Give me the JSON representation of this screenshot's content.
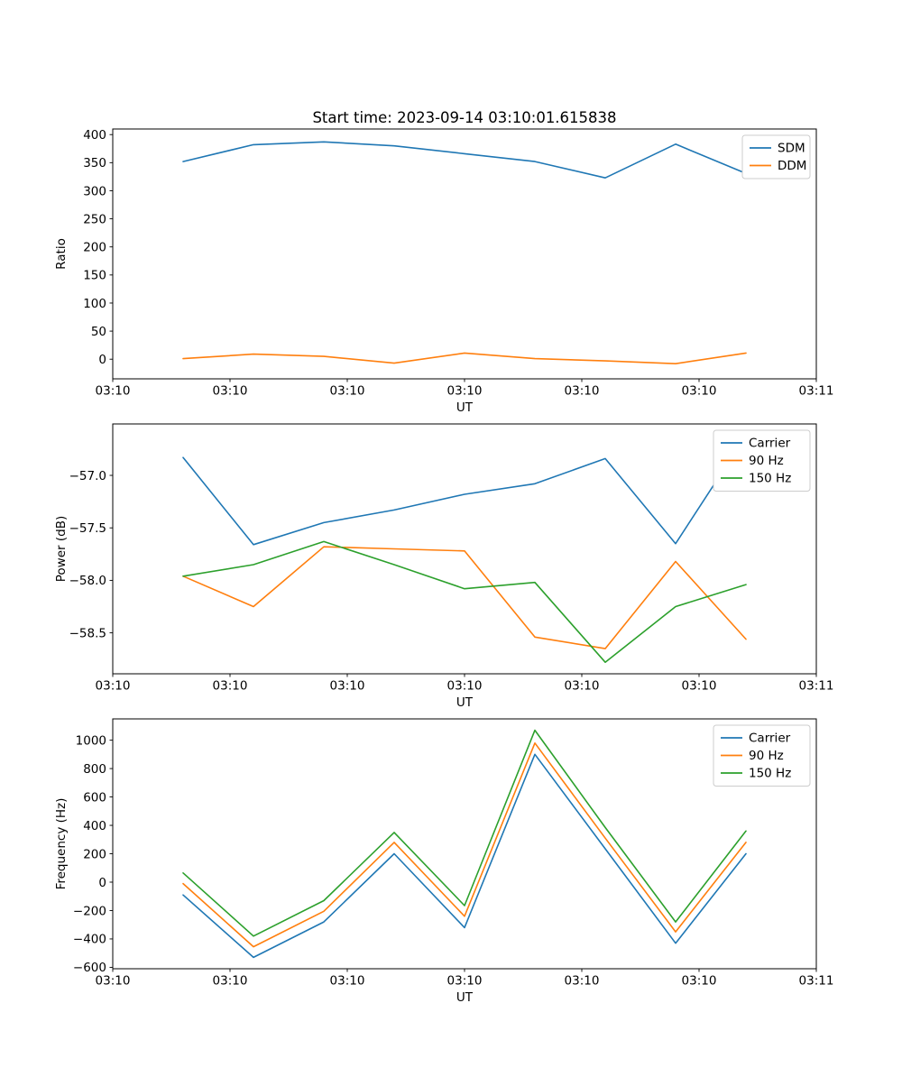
{
  "figure": {
    "background": "#ffffff"
  },
  "colors": {
    "blue": "#1f77b4",
    "orange": "#ff7f0e",
    "green": "#2ca02c",
    "legend_border": "#cccccc",
    "axes": "#000000"
  },
  "chart_data": [
    {
      "id": "ratio",
      "type": "line",
      "title": "Start time: 2023-09-14 03:10:01.615838",
      "xlabel": "UT",
      "ylabel": "Ratio",
      "x": [
        6,
        12,
        18,
        24,
        30,
        36,
        42,
        48,
        54
      ],
      "series": [
        {
          "name": "SDM",
          "color": "#1f77b4",
          "values": [
            352,
            382,
            387,
            380,
            366,
            352,
            323,
            383,
            331
          ]
        },
        {
          "name": "DDM",
          "color": "#ff7f0e",
          "values": [
            1,
            9,
            5,
            -7,
            11,
            1,
            -3,
            -8,
            11
          ]
        }
      ],
      "xlim": [
        0,
        60
      ],
      "ylim": [
        -35,
        410
      ],
      "yticks": [
        0,
        50,
        100,
        150,
        200,
        250,
        300,
        350,
        400
      ],
      "ytick_labels": [
        "0",
        "50",
        "100",
        "150",
        "200",
        "250",
        "300",
        "350",
        "400"
      ],
      "xticks": [
        0,
        10,
        20,
        30,
        40,
        50,
        60
      ],
      "xtick_labels": [
        "03:10",
        "03:10",
        "03:10",
        "03:10",
        "03:10",
        "03:10",
        "03:11"
      ],
      "legend_position": "top-right",
      "grid": false
    },
    {
      "id": "power",
      "type": "line",
      "title": "",
      "xlabel": "UT",
      "ylabel": "Power (dB)",
      "x": [
        6,
        12,
        18,
        24,
        30,
        36,
        42,
        48,
        54
      ],
      "series": [
        {
          "name": "Carrier",
          "color": "#1f77b4",
          "values": [
            -56.83,
            -57.66,
            -57.45,
            -57.33,
            -57.18,
            -57.08,
            -56.84,
            -57.65,
            -56.62
          ]
        },
        {
          "name": "90 Hz",
          "color": "#ff7f0e",
          "values": [
            -57.96,
            -58.25,
            -57.68,
            -57.7,
            -57.72,
            -58.54,
            -58.65,
            -57.82,
            -58.56
          ]
        },
        {
          "name": "150 Hz",
          "color": "#2ca02c",
          "values": [
            -57.96,
            -57.85,
            -57.63,
            -57.85,
            -58.08,
            -58.02,
            -58.78,
            -58.25,
            -58.04
          ]
        }
      ],
      "xlim": [
        0,
        60
      ],
      "ylim": [
        -58.89,
        -56.51
      ],
      "yticks": [
        -57.0,
        -57.5,
        -58.0,
        -58.5
      ],
      "ytick_labels": [
        "−57.0",
        "−57.5",
        "−58.0",
        "−58.5"
      ],
      "xticks": [
        0,
        10,
        20,
        30,
        40,
        50,
        60
      ],
      "xtick_labels": [
        "03:10",
        "03:10",
        "03:10",
        "03:10",
        "03:10",
        "03:10",
        "03:11"
      ],
      "legend_position": "top-right",
      "grid": false
    },
    {
      "id": "frequency",
      "type": "line",
      "title": "",
      "xlabel": "UT",
      "ylabel": "Frequency (Hz)",
      "x": [
        6,
        12,
        18,
        24,
        30,
        36,
        42,
        48,
        54
      ],
      "series": [
        {
          "name": "Carrier",
          "color": "#1f77b4",
          "values": [
            -90,
            -530,
            -280,
            200,
            -320,
            900,
            235,
            -430,
            200
          ]
        },
        {
          "name": "90 Hz",
          "color": "#ff7f0e",
          "values": [
            -10,
            -455,
            -205,
            280,
            -240,
            980,
            310,
            -350,
            280
          ]
        },
        {
          "name": "150 Hz",
          "color": "#2ca02c",
          "values": [
            65,
            -380,
            -130,
            350,
            -165,
            1070,
            385,
            -280,
            360
          ]
        }
      ],
      "xlim": [
        0,
        60
      ],
      "ylim": [
        -610,
        1150
      ],
      "yticks": [
        -600,
        -400,
        -200,
        0,
        200,
        400,
        600,
        800,
        1000
      ],
      "ytick_labels": [
        "−600",
        "−400",
        "−200",
        "0",
        "200",
        "400",
        "600",
        "800",
        "1000"
      ],
      "xticks": [
        0,
        10,
        20,
        30,
        40,
        50,
        60
      ],
      "xtick_labels": [
        "03:10",
        "03:10",
        "03:10",
        "03:10",
        "03:10",
        "03:10",
        "03:11"
      ],
      "legend_position": "top-right",
      "grid": false
    }
  ]
}
